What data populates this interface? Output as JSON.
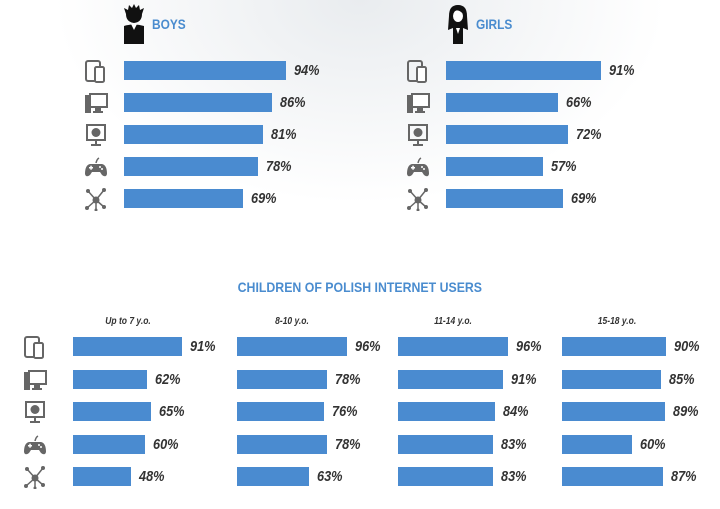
{
  "colors": {
    "bar": "#4a8bd0",
    "heading": "#4a8ccf",
    "icon": "#666666",
    "text": "#333333"
  },
  "categories": [
    "tablet-smartphone-icon",
    "desktop-computer-icon",
    "internet-monitor-icon",
    "gamepad-icon",
    "network-icon"
  ],
  "top": {
    "boys_label": "BOYS",
    "girls_label": "GIRLS"
  },
  "bottom": {
    "title": "CHILDREN OF POLISH INTERNET USERS"
  },
  "chart_data": [
    {
      "type": "bar",
      "orientation": "horizontal",
      "title": "BOYS",
      "unit": "%",
      "values": [
        94,
        86,
        81,
        78,
        69
      ],
      "labels": [
        "94%",
        "86%",
        "81%",
        "78%",
        "69%"
      ]
    },
    {
      "type": "bar",
      "orientation": "horizontal",
      "title": "GIRLS",
      "unit": "%",
      "values": [
        91,
        66,
        72,
        57,
        69
      ],
      "labels": [
        "91%",
        "66%",
        "72%",
        "57%",
        "69%"
      ]
    },
    {
      "type": "bar",
      "orientation": "horizontal",
      "title": "Up to 7 y.o.",
      "unit": "%",
      "values": [
        91,
        62,
        65,
        60,
        48
      ],
      "labels": [
        "91%",
        "62%",
        "65%",
        "60%",
        "48%"
      ]
    },
    {
      "type": "bar",
      "orientation": "horizontal",
      "title": "8-10 y.o.",
      "unit": "%",
      "values": [
        96,
        78,
        76,
        78,
        63
      ],
      "labels": [
        "96%",
        "78%",
        "76%",
        "78%",
        "63%"
      ]
    },
    {
      "type": "bar",
      "orientation": "horizontal",
      "title": "11-14 y.o.",
      "unit": "%",
      "values": [
        96,
        91,
        84,
        83,
        83
      ],
      "labels": [
        "96%",
        "91%",
        "84%",
        "83%",
        "83%"
      ]
    },
    {
      "type": "bar",
      "orientation": "horizontal",
      "title": "15-18 y.o.",
      "unit": "%",
      "values": [
        90,
        85,
        89,
        60,
        87
      ],
      "labels": [
        "90%",
        "85%",
        "89%",
        "60%",
        "87%"
      ]
    }
  ]
}
